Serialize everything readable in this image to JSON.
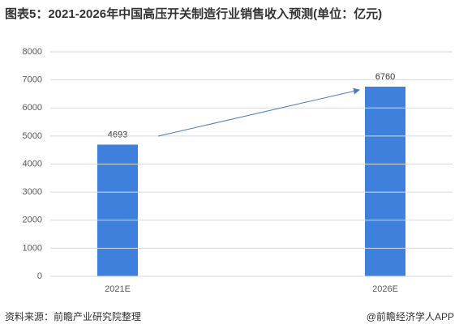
{
  "chart_data": {
    "type": "bar",
    "title": "图表5：2021-2026年中国高压开关制造行业销售收入预测(单位：亿元)",
    "categories": [
      "2021E",
      "2026E"
    ],
    "values": [
      4693,
      6760
    ],
    "color": "#3f80dc",
    "ylim": [
      0,
      8000
    ],
    "yticks": [
      0,
      1000,
      2000,
      3000,
      4000,
      5000,
      6000,
      7000,
      8000
    ],
    "grid": true,
    "source": "资料来源：前瞻产业研究院整理",
    "credit": "@前瞻经济学人APP"
  }
}
